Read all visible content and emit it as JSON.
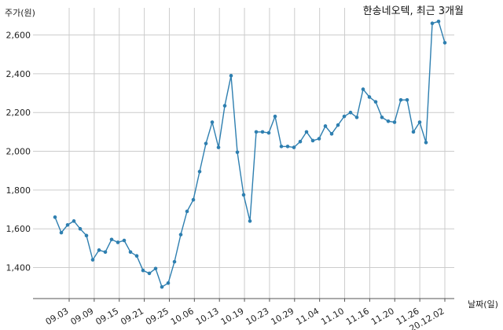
{
  "chart_data": {
    "type": "line",
    "title": "한송네오텍, 최근 3개월",
    "xlabel": "날짜(일)",
    "ylabel": "주가(원)",
    "ylim": [
      1240,
      2740
    ],
    "yticks": [
      "1,400",
      "1,600",
      "1,800",
      "2,000",
      "2,200",
      "2,400",
      "2,600"
    ],
    "ytick_values": [
      1400,
      1600,
      1800,
      2000,
      2200,
      2400,
      2600
    ],
    "xticks": [
      "09.03",
      "09.09",
      "09.15",
      "09.21",
      "09.25",
      "10.06",
      "10.13",
      "10.19",
      "10.23",
      "10.29",
      "11.04",
      "11.10",
      "11.16",
      "11.20",
      "11.26",
      "20.12.02"
    ],
    "grid": true,
    "line_color": "#2e7fb0",
    "series": [
      {
        "values": [
          1660,
          1580,
          1620,
          1640,
          1600,
          1565,
          1440,
          1490,
          1480,
          1545,
          1530,
          1540,
          1480,
          1460,
          1385,
          1370,
          1395,
          1300,
          1320,
          1430,
          1570,
          1690,
          1750,
          1895,
          2040,
          2150,
          2020,
          2235,
          2390,
          1995,
          1775,
          1640,
          2100,
          2100,
          2095,
          2180,
          2025,
          2025,
          2020,
          2050,
          2100,
          2055,
          2065,
          2130,
          2090,
          2135,
          2180,
          2200,
          2175,
          2320,
          2280,
          2255,
          2175,
          2155,
          2150,
          2265,
          2265,
          2100,
          2150,
          2045,
          2660,
          2670,
          2560
        ]
      }
    ]
  }
}
